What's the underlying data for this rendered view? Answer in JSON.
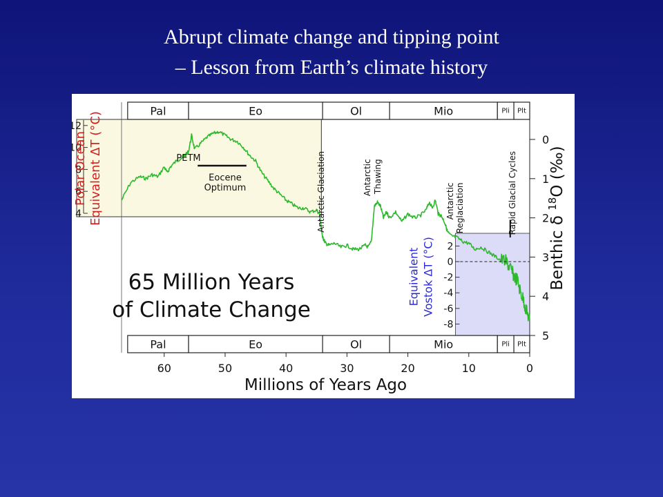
{
  "slide": {
    "title_line1": "Abrupt climate change and tipping point",
    "title_line2": "– Lesson from Earth’s climate history"
  },
  "colors": {
    "background": "#1a2290",
    "curve": "#2db82d",
    "left_axis": "#d42020",
    "vostok_axis": "#2a2ad0",
    "panel_yellow": "#fbf8e2",
    "panel_blue": "#dcdcf8"
  },
  "chart_data": {
    "type": "line",
    "title": "65 Million Years of Climate Change",
    "title_lines": [
      "65 Million Years",
      "of Climate Change"
    ],
    "xlabel": "Millions of Years Ago",
    "xlim": [
      67,
      0
    ],
    "xticks": [
      60,
      50,
      40,
      30,
      20,
      10,
      0
    ],
    "xtick_labels": [
      "60",
      "50",
      "40",
      "30",
      "20",
      "10",
      "0"
    ],
    "ylabel_right": "Benthic δ ¹⁸O (‰)",
    "ylabel_right_main": "Benthic δ",
    "ylabel_right_sup": "18",
    "ylabel_right_tail": "O (‰)",
    "ylim_right": [
      5,
      -0.5
    ],
    "yticks_right": [
      0,
      1,
      2,
      3,
      4,
      5
    ],
    "ytick_labels_right": [
      "0",
      "1",
      "2",
      "3",
      "4",
      "5"
    ],
    "ylabel_left_lines": [
      "Polar Ocean",
      "Equivalent ΔT (°C)"
    ],
    "yticks_left": [
      4,
      6,
      8,
      10,
      12
    ],
    "ytick_labels_left": [
      "4",
      "6",
      "8",
      "10",
      "12"
    ],
    "ylabel_vostok_lines": [
      "Equivalent",
      "Vostok ΔT (°C)"
    ],
    "yticks_vostok": [
      2,
      0,
      -2,
      -4,
      -6,
      -8
    ],
    "ytick_labels_vostok": [
      "2",
      "0",
      "-2",
      "-4",
      "-6",
      "-8"
    ],
    "epochs": [
      {
        "name": "Pal",
        "start": 66,
        "end": 56
      },
      {
        "name": "Eo",
        "start": 56,
        "end": 34
      },
      {
        "name": "Ol",
        "start": 34,
        "end": 23
      },
      {
        "name": "Mio",
        "start": 23,
        "end": 5.3
      },
      {
        "name": "Pli",
        "start": 5.3,
        "end": 2.6
      },
      {
        "name": "Plt",
        "start": 2.6,
        "end": 0
      }
    ],
    "annotations": [
      {
        "text": "PETM",
        "x": 56,
        "y": 0.55
      },
      {
        "text": "Eocene",
        "x": 50,
        "y": 1.05
      },
      {
        "text": "Optimum",
        "x": 50,
        "y": 1.3
      },
      {
        "text": "Antarctic Glaciation",
        "x": 33.8,
        "y": 0.3,
        "rotated": true
      },
      {
        "text": "Antarctic",
        "x": 26.2,
        "y": 0.5,
        "rotated": true
      },
      {
        "text": "Thawing",
        "x": 24.5,
        "y": 0.5,
        "rotated": true
      },
      {
        "text": "Antarctic",
        "x": 12.6,
        "y": 1.1,
        "rotated": true
      },
      {
        "text": "Reglaciation",
        "x": 11.0,
        "y": 1.1,
        "rotated": true
      },
      {
        "text": "Rapid Glacial Cycles",
        "x": 2.4,
        "y": 0.3,
        "rotated": true
      }
    ],
    "series": [
      {
        "x": [
          67,
          65.5,
          64,
          63,
          62,
          61,
          60,
          59.5,
          59,
          58,
          57,
          56.5,
          56,
          55.5,
          55,
          54,
          53,
          52,
          51,
          50,
          49,
          48,
          47,
          46,
          45,
          44,
          43,
          42,
          41,
          40,
          39,
          38,
          37,
          36,
          35,
          34.5,
          34,
          33.8,
          33.5,
          33,
          32,
          31,
          30,
          29,
          28,
          27,
          26.5,
          26,
          25.5,
          25,
          24.5,
          24,
          23.5,
          23,
          22,
          21,
          20,
          19,
          18,
          17,
          16.5,
          16,
          15.5,
          15,
          14.5,
          14,
          13.5,
          13,
          12,
          11,
          10,
          9,
          8,
          7,
          6,
          5,
          4,
          3.5,
          3,
          2.5,
          2,
          1.5,
          1,
          0.5,
          0
        ],
        "y": [
          1.55,
          1.1,
          0.95,
          1.0,
          0.9,
          0.95,
          0.7,
          0.85,
          0.7,
          0.55,
          0.45,
          0.4,
          0.3,
          -0.1,
          0.25,
          0.1,
          -0.05,
          -0.15,
          -0.2,
          -0.1,
          0.0,
          0.05,
          0.2,
          0.4,
          0.55,
          0.85,
          1.05,
          1.25,
          1.4,
          1.55,
          1.65,
          1.75,
          1.75,
          1.85,
          1.8,
          1.9,
          2.5,
          2.55,
          2.65,
          2.7,
          2.65,
          2.75,
          2.7,
          2.8,
          2.8,
          2.7,
          2.75,
          2.6,
          1.7,
          1.6,
          1.7,
          2.0,
          1.85,
          2.0,
          1.85,
          2.1,
          1.9,
          2.0,
          1.95,
          1.8,
          1.6,
          1.75,
          1.55,
          1.9,
          1.95,
          2.1,
          2.35,
          2.45,
          2.5,
          2.6,
          2.65,
          2.8,
          2.75,
          2.85,
          2.95,
          3.05,
          3.1,
          3.2,
          3.35,
          3.5,
          3.6,
          3.9,
          4.1,
          4.4,
          4.6
        ]
      }
    ]
  }
}
